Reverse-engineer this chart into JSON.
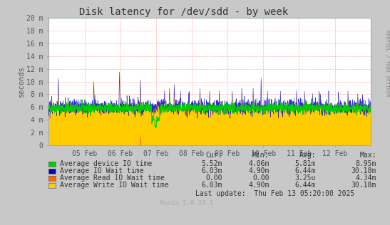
{
  "title": "Disk latency for /dev/sdd - by week",
  "ylabel": "seconds",
  "right_label": "RRDTOOL / TOBI OETIKER",
  "fig_bg_color": "#C8C8C8",
  "plot_bg_color": "#FFFFFF",
  "grid_color": "#FF9999",
  "ylim": [
    0,
    0.02
  ],
  "yticks": [
    0,
    0.002,
    0.004,
    0.006,
    0.008,
    0.01,
    0.012,
    0.014,
    0.016,
    0.018,
    0.02
  ],
  "ytick_labels": [
    "0",
    "2 m",
    "4 m",
    "6 m",
    "8 m",
    "10 m",
    "12 m",
    "14 m",
    "16 m",
    "18 m",
    "20 m"
  ],
  "xticklabels": [
    "05 Feb",
    "06 Feb",
    "07 Feb",
    "08 Feb",
    "09 Feb",
    "10 Feb",
    "11 Feb",
    "12 Feb"
  ],
  "legend_labels": [
    "Average device IO time",
    "Average IO Wait time",
    "Average Read IO Wait time",
    "Average Write IO Wait time"
  ],
  "legend_colors": [
    "#00CC00",
    "#0000CC",
    "#FF6600",
    "#FFCC00"
  ],
  "legend_stats": {
    "headers": [
      "Cur:",
      "Min:",
      "Avg:",
      "Max:"
    ],
    "rows": [
      [
        "5.52m",
        "4.06m",
        "5.81m",
        "8.95m"
      ],
      [
        "6.03m",
        "4.90m",
        "6.44m",
        "30.18m"
      ],
      [
        "0.00",
        "0.00",
        "3.25u",
        "4.34m"
      ],
      [
        "6.03m",
        "4.90m",
        "6.44m",
        "30.18m"
      ]
    ]
  },
  "last_update": "Last update:  Thu Feb 13 05:20:00 2025",
  "munin_version": "Munin 2.0.33-1"
}
